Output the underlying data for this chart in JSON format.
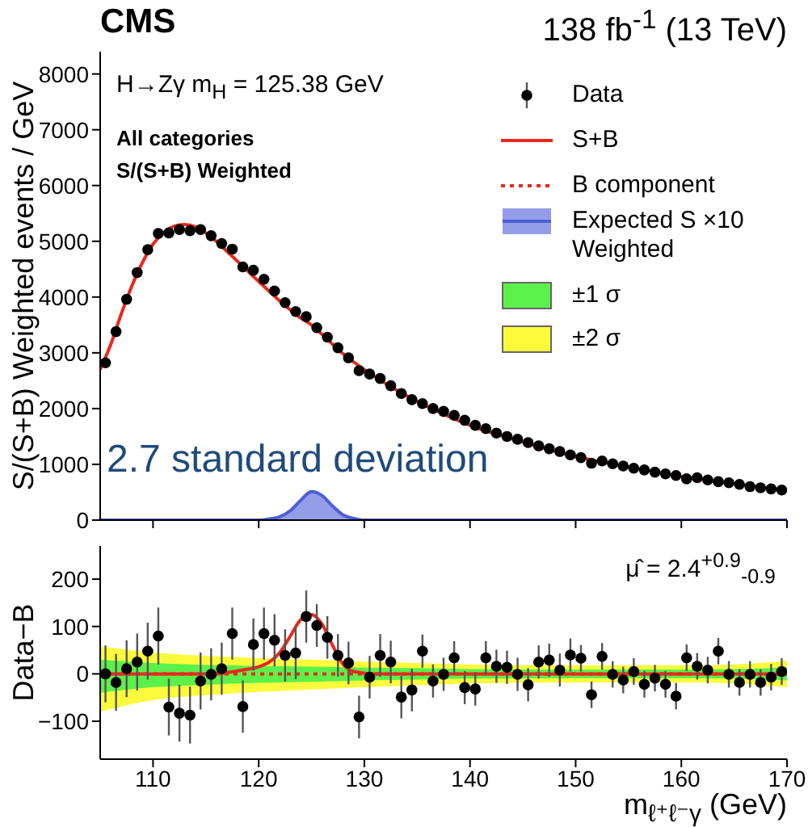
{
  "chart_data": [
    {
      "type": "scatter",
      "title": "CMS",
      "subtitle": "138 fb$^{-1}$ (13 TeV)",
      "ylabel": "S/(S+B) Weighted events / GeV",
      "annotations": [
        "H→Zγ  m$_{H}$ = 125.38 GeV",
        "All categories",
        "S/(S+B) Weighted",
        "2.7 standard deviation"
      ],
      "x": [
        105.5,
        106.5,
        107.5,
        108.5,
        109.5,
        110.5,
        111.5,
        112.5,
        113.5,
        114.5,
        115.5,
        116.5,
        117.5,
        118.5,
        119.5,
        120.5,
        121.5,
        122.5,
        123.5,
        124.5,
        125.5,
        126.5,
        127.5,
        128.5,
        129.5,
        130.5,
        131.5,
        132.5,
        133.5,
        134.5,
        135.5,
        136.5,
        137.5,
        138.5,
        139.5,
        140.5,
        141.5,
        142.5,
        143.5,
        144.5,
        145.5,
        146.5,
        147.5,
        148.5,
        149.5,
        150.5,
        151.5,
        152.5,
        153.5,
        154.5,
        155.5,
        156.5,
        157.5,
        158.5,
        159.5,
        160.5,
        161.5,
        162.5,
        163.5,
        164.5,
        165.5,
        166.5,
        167.5,
        168.5,
        169.5
      ],
      "xlim": [
        105,
        170
      ],
      "xticks": [
        110,
        120,
        130,
        140,
        150,
        160,
        170
      ],
      "ylim": [
        0,
        8400
      ],
      "yticks": [
        0,
        1000,
        2000,
        3000,
        4000,
        5000,
        6000,
        7000,
        8000
      ],
      "tick_labels": "y",
      "legend": "top right",
      "series": [
        {
          "name": "Data",
          "color": "#000000",
          "marker": "circle",
          "values": [
            2820,
            3380,
            3960,
            4440,
            4850,
            5140,
            5150,
            5210,
            5190,
            5210,
            5100,
            4960,
            4860,
            4540,
            4480,
            4320,
            4110,
            3900,
            3740,
            3650,
            3450,
            3280,
            3090,
            2910,
            2680,
            2620,
            2540,
            2410,
            2270,
            2160,
            2090,
            2000,
            1950,
            1880,
            1790,
            1700,
            1640,
            1560,
            1500,
            1450,
            1390,
            1330,
            1280,
            1230,
            1170,
            1120,
            1020,
            1060,
            1010,
            970,
            930,
            900,
            860,
            830,
            800,
            740,
            760,
            720,
            690,
            670,
            640,
            600,
            580,
            560,
            540
          ]
        },
        {
          "name": "S+B",
          "type": "line",
          "color": "#e8291c",
          "line_style": "solid",
          "x": [
            105,
            106,
            107,
            108,
            109,
            110,
            111,
            112,
            113,
            114,
            115,
            116,
            117,
            118,
            119,
            120,
            122,
            124,
            125,
            126,
            128,
            130,
            132,
            135,
            140,
            145,
            150,
            155,
            160,
            165,
            170
          ],
          "values": [
            2700,
            3150,
            3700,
            4200,
            4620,
            4950,
            5150,
            5270,
            5300,
            5260,
            5150,
            5000,
            4820,
            4640,
            4460,
            4280,
            3930,
            3620,
            3500,
            3330,
            2980,
            2700,
            2450,
            2130,
            1700,
            1400,
            1140,
            950,
            780,
            650,
            540
          ]
        },
        {
          "name": "Expected S ×10 Weighted",
          "type": "area",
          "color": "#4c5ed8",
          "x": [
            105,
            118,
            120,
            121,
            122,
            123,
            124,
            125,
            126,
            127,
            128,
            129,
            130,
            132,
            170
          ],
          "values": [
            0,
            0,
            0,
            20,
            60,
            170,
            360,
            510,
            440,
            250,
            90,
            30,
            0,
            0,
            0
          ]
        }
      ]
    },
    {
      "type": "scatter",
      "xlabel": "m$_{ℓ⁺ℓ⁻γ}$ (GeV)",
      "ylabel": "Data−B",
      "annotations": [
        "μ̂ = 2.4$^{+0.9}$$_{-0.9}$"
      ],
      "x": [
        105.5,
        106.5,
        107.5,
        108.5,
        109.5,
        110.5,
        111.5,
        112.5,
        113.5,
        114.5,
        115.5,
        116.5,
        117.5,
        118.5,
        119.5,
        120.5,
        121.5,
        122.5,
        123.5,
        124.5,
        125.5,
        126.5,
        127.5,
        128.5,
        129.5,
        130.5,
        131.5,
        132.5,
        133.5,
        134.5,
        135.5,
        136.5,
        137.5,
        138.5,
        139.5,
        140.5,
        141.5,
        142.5,
        143.5,
        144.5,
        145.5,
        146.5,
        147.5,
        148.5,
        149.5,
        150.5,
        151.5,
        152.5,
        153.5,
        154.5,
        155.5,
        156.5,
        157.5,
        158.5,
        159.5,
        160.5,
        161.5,
        162.5,
        163.5,
        164.5,
        165.5,
        166.5,
        167.5,
        168.5,
        169.5
      ],
      "xlim": [
        105,
        170
      ],
      "xticks": [
        110,
        120,
        130,
        140,
        150,
        160,
        170
      ],
      "ylim": [
        -180,
        270
      ],
      "yticks": [
        {
          "value": -100,
          "label": "−100"
        },
        0,
        100,
        200
      ],
      "legend": "top right",
      "series": [
        {
          "name": "B component",
          "type": "line",
          "color": "#e8291c",
          "line_style": "dotted",
          "x": [
            105,
            170
          ],
          "values": [
            0,
            0
          ]
        },
        {
          "name": "±1 σ",
          "type": "area",
          "color": "#5cf04a",
          "x": [
            105,
            110,
            115,
            120,
            125,
            130,
            135,
            140,
            150,
            160,
            165,
            170
          ],
          "values": [
            null,
            null,
            null,
            null,
            null,
            null,
            null,
            null,
            null,
            null,
            null,
            null
          ],
          "lower": [
            -40,
            -28,
            -23,
            -19,
            -17,
            -14,
            -12,
            -10,
            -9,
            -9,
            -10,
            -14
          ],
          "upper": [
            30,
            23,
            19,
            17,
            15,
            13,
            12,
            10,
            9,
            9,
            10,
            14
          ]
        },
        {
          "name": "±2 σ",
          "type": "area",
          "color": "#fbfb3c",
          "x": [
            105,
            110,
            115,
            120,
            125,
            130,
            135,
            140,
            150,
            160,
            165,
            170
          ],
          "values": [
            null,
            null,
            null,
            null,
            null,
            null,
            null,
            null,
            null,
            null,
            null,
            null
          ],
          "lower": [
            -80,
            -55,
            -45,
            -38,
            -33,
            -28,
            -24,
            -20,
            -18,
            -18,
            -20,
            -28
          ],
          "upper": [
            58,
            45,
            38,
            33,
            30,
            26,
            23,
            20,
            18,
            18,
            20,
            28
          ]
        },
        {
          "type": "line",
          "color": "#e8291c",
          "line_style": "solid",
          "x": [
            105,
            115,
            117,
            119,
            120,
            121,
            122,
            123,
            124,
            125,
            126,
            127,
            128,
            129,
            131,
            170
          ],
          "values": [
            0,
            0,
            3,
            10,
            15,
            25,
            45,
            80,
            115,
            125,
            105,
            60,
            20,
            5,
            0,
            0
          ]
        },
        {
          "color": "#000000",
          "marker": "circle",
          "values": [
            0,
            -18,
            11,
            25,
            48,
            80,
            -70,
            -83,
            -87,
            -15,
            -1,
            11,
            85,
            -69,
            62,
            85,
            71,
            39,
            44,
            121,
            102,
            77,
            39,
            23,
            -91,
            -7,
            39,
            25,
            -49,
            -34,
            48,
            -15,
            -1,
            34,
            -29,
            -32,
            34,
            16,
            14,
            -1,
            -23,
            25,
            29,
            8,
            40,
            33,
            -44,
            37,
            -1,
            -13,
            5,
            -22,
            -9,
            -22,
            -47,
            34,
            16,
            8,
            48,
            -1,
            -18,
            -1,
            -18,
            -7,
            5
          ],
          "errors": [
            60,
            60,
            60,
            60,
            60,
            60,
            60,
            60,
            60,
            60,
            55,
            55,
            55,
            55,
            55,
            55,
            55,
            55,
            55,
            55,
            45,
            45,
            45,
            45,
            45,
            45,
            45,
            45,
            45,
            45,
            35,
            35,
            35,
            35,
            35,
            35,
            35,
            35,
            35,
            35,
            35,
            35,
            35,
            35,
            35,
            28,
            28,
            28,
            28,
            28,
            28,
            28,
            28,
            28,
            28,
            28,
            28,
            28,
            28,
            28,
            28,
            28,
            28,
            28,
            28
          ]
        }
      ]
    }
  ]
}
